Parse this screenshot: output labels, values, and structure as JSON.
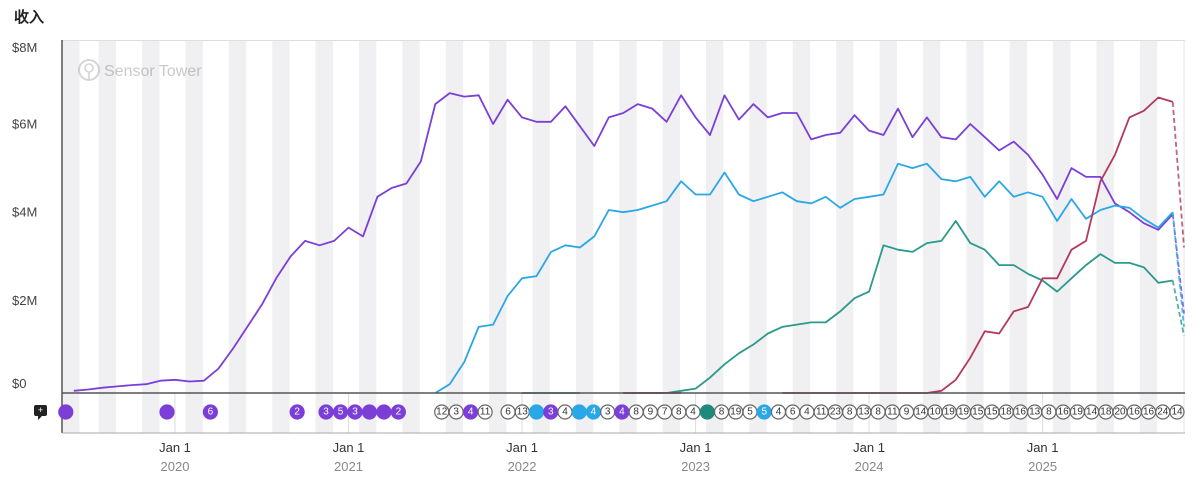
{
  "chart_data": {
    "type": "line",
    "title": "收入",
    "watermark": "Sensor Tower",
    "ylim": [
      0,
      8000000
    ],
    "y_ticks": [
      "$0",
      "$2M",
      "$4M",
      "$6M",
      "$8M"
    ],
    "x_ticks": [
      {
        "label": "Jan 1",
        "year": "2020"
      },
      {
        "label": "Jan 1",
        "year": "2021"
      },
      {
        "label": "Jan 1",
        "year": "2022"
      },
      {
        "label": "Jan 1",
        "year": "2023"
      },
      {
        "label": "Jan 1",
        "year": "2024"
      },
      {
        "label": "Jan 1",
        "year": "2025"
      }
    ],
    "x_start": "2019-06",
    "unit": "USD millions (monthly)",
    "grid": false,
    "series": [
      {
        "color": "#7b3fd8",
        "forecast": 1.8,
        "values": [
          0.05,
          0.08,
          0.12,
          0.15,
          0.18,
          0.2,
          0.28,
          0.3,
          0.26,
          0.28,
          0.55,
          1.0,
          1.5,
          2.0,
          2.6,
          3.1,
          3.45,
          3.35,
          3.45,
          3.75,
          3.55,
          4.45,
          4.65,
          4.75,
          5.25,
          6.55,
          6.8,
          6.72,
          6.75,
          6.1,
          6.65,
          6.25,
          6.15,
          6.15,
          6.5,
          6.05,
          5.6,
          6.25,
          6.35,
          6.55,
          6.45,
          6.15,
          6.75,
          6.25,
          5.85,
          6.75,
          6.2,
          6.55,
          6.25,
          6.35,
          6.35,
          5.75,
          5.85,
          5.9,
          6.3,
          5.95,
          5.85,
          6.45,
          5.8,
          6.25,
          5.8,
          5.75,
          6.1,
          5.8,
          5.5,
          5.7,
          5.4,
          4.95,
          4.4,
          5.1,
          4.9,
          4.9,
          4.3,
          4.1,
          3.85,
          3.7,
          4.05
        ]
      },
      {
        "color": "#2aa7e6",
        "forecast": 1.5,
        "values": [
          null,
          null,
          null,
          null,
          null,
          null,
          null,
          null,
          null,
          null,
          null,
          null,
          null,
          null,
          null,
          null,
          null,
          null,
          null,
          null,
          null,
          null,
          null,
          null,
          null,
          0,
          0.2,
          0.7,
          1.5,
          1.55,
          2.2,
          2.6,
          2.65,
          3.2,
          3.35,
          3.3,
          3.55,
          4.15,
          4.1,
          4.15,
          4.25,
          4.35,
          4.8,
          4.5,
          4.5,
          5.0,
          4.5,
          4.35,
          4.45,
          4.55,
          4.35,
          4.3,
          4.45,
          4.2,
          4.4,
          4.45,
          4.5,
          5.2,
          5.1,
          5.2,
          4.85,
          4.8,
          4.9,
          4.45,
          4.8,
          4.45,
          4.55,
          4.45,
          3.9,
          4.4,
          3.95,
          4.15,
          4.25,
          4.2,
          3.95,
          3.75,
          4.1
        ]
      },
      {
        "color": "#2a9a8a",
        "forecast": 1.3,
        "values": [
          null,
          null,
          null,
          null,
          null,
          null,
          null,
          null,
          null,
          null,
          null,
          null,
          null,
          null,
          null,
          null,
          null,
          null,
          null,
          null,
          null,
          null,
          null,
          null,
          null,
          null,
          null,
          null,
          null,
          null,
          null,
          0,
          0,
          0,
          0,
          0,
          null,
          null,
          0,
          0,
          0,
          0,
          0.05,
          0.1,
          0.35,
          0.65,
          0.9,
          1.1,
          1.35,
          1.5,
          1.55,
          1.6,
          1.6,
          1.85,
          2.15,
          2.3,
          3.35,
          3.25,
          3.2,
          3.4,
          3.45,
          3.9,
          3.4,
          3.25,
          2.9,
          2.9,
          2.7,
          2.55,
          2.3,
          2.6,
          2.9,
          3.15,
          2.95,
          2.95,
          2.85,
          2.5,
          2.55
        ]
      },
      {
        "color": "#b3395c",
        "forecast": 3.3,
        "values": [
          null,
          null,
          null,
          null,
          null,
          null,
          null,
          null,
          null,
          null,
          null,
          null,
          null,
          null,
          null,
          null,
          null,
          null,
          null,
          null,
          null,
          null,
          null,
          null,
          null,
          null,
          null,
          null,
          null,
          null,
          null,
          null,
          null,
          null,
          null,
          null,
          null,
          null,
          0,
          0,
          0,
          0,
          0,
          null,
          null,
          null,
          null,
          null,
          null,
          0,
          0,
          0,
          0,
          0,
          0,
          0,
          0,
          0,
          0,
          0,
          0.05,
          0.3,
          0.8,
          1.4,
          1.35,
          1.85,
          1.95,
          2.6,
          2.6,
          3.25,
          3.45,
          4.8,
          5.4,
          6.25,
          6.4,
          6.7,
          6.6
        ]
      }
    ],
    "events": {
      "early": [
        {
          "month": "2019-06",
          "label": "",
          "color": "#7b3fd8"
        },
        {
          "month": "2020-01",
          "label": "",
          "color": "#7b3fd8"
        },
        {
          "month": "2020-04",
          "label": "6",
          "color": "#7b3fd8"
        },
        {
          "month": "2020-10",
          "label": "2",
          "color": "#7b3fd8"
        },
        {
          "month": "2020-12",
          "label": "3",
          "color": "#7b3fd8"
        },
        {
          "month": "2021-01",
          "label": "5",
          "color": "#7b3fd8"
        },
        {
          "month": "2021-02",
          "label": "3",
          "color": "#7b3fd8"
        },
        {
          "month": "2021-03",
          "label": "",
          "color": "#7b3fd8"
        },
        {
          "month": "2021-04",
          "label": "",
          "color": "#7b3fd8"
        },
        {
          "month": "2021-05",
          "label": "2",
          "color": "#7b3fd8"
        },
        {
          "month": "2021-08",
          "label": "12",
          "color": ""
        },
        {
          "month": "2021-09",
          "label": "3",
          "color": ""
        },
        {
          "month": "2021-10",
          "label": "4",
          "color": "#7b3fd8"
        },
        {
          "month": "2021-11",
          "label": "11",
          "color": ""
        }
      ],
      "sequence_start": "2022-01",
      "sequence": [
        {
          "label": "6",
          "color": ""
        },
        {
          "label": "13",
          "color": ""
        },
        {
          "label": "",
          "color": "#2aa7e6"
        },
        {
          "label": "3",
          "color": "#7b3fd8"
        },
        {
          "label": "4",
          "color": ""
        },
        {
          "label": "",
          "color": "#2aa7e6"
        },
        {
          "label": "4",
          "color": "#2aa7e6"
        },
        {
          "label": "3",
          "color": ""
        },
        {
          "label": "4",
          "color": "#7b3fd8"
        },
        {
          "label": "8",
          "color": ""
        },
        {
          "label": "9",
          "color": ""
        },
        {
          "label": "7",
          "color": ""
        },
        {
          "label": "8",
          "color": ""
        },
        {
          "label": "4",
          "color": ""
        },
        {
          "label": "",
          "color": "#1f8a7c"
        },
        {
          "label": "8",
          "color": ""
        },
        {
          "label": "19",
          "color": ""
        },
        {
          "label": "5",
          "color": ""
        },
        {
          "label": "5",
          "color": "#2aa7e6"
        },
        {
          "label": "4",
          "color": ""
        },
        {
          "label": "6",
          "color": ""
        },
        {
          "label": "4",
          "color": ""
        },
        {
          "label": "11",
          "color": ""
        },
        {
          "label": "23",
          "color": ""
        },
        {
          "label": "8",
          "color": ""
        },
        {
          "label": "13",
          "color": ""
        },
        {
          "label": "8",
          "color": ""
        },
        {
          "label": "11",
          "color": ""
        },
        {
          "label": "9",
          "color": ""
        },
        {
          "label": "14",
          "color": ""
        },
        {
          "label": "10",
          "color": ""
        },
        {
          "label": "19",
          "color": ""
        },
        {
          "label": "19",
          "color": ""
        },
        {
          "label": "15",
          "color": ""
        },
        {
          "label": "15",
          "color": ""
        },
        {
          "label": "18",
          "color": ""
        },
        {
          "label": "16",
          "color": ""
        },
        {
          "label": "13",
          "color": ""
        },
        {
          "label": "8",
          "color": ""
        },
        {
          "label": "16",
          "color": ""
        },
        {
          "label": "19",
          "color": ""
        },
        {
          "label": "14",
          "color": ""
        },
        {
          "label": "18",
          "color": ""
        },
        {
          "label": "20",
          "color": ""
        },
        {
          "label": "16",
          "color": ""
        },
        {
          "label": "16",
          "color": ""
        },
        {
          "label": "24",
          "color": ""
        },
        {
          "label": "14",
          "color": ""
        }
      ]
    }
  }
}
